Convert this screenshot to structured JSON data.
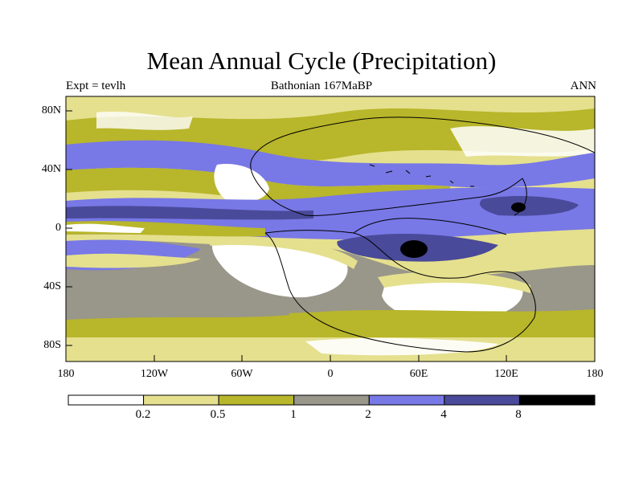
{
  "title": "Mean Annual Cycle (Precipitation)",
  "subtitle_left": "Expt = tevlh",
  "subtitle_center": "Bathonian 167MaBP",
  "subtitle_right": "ANN",
  "lat_ticks": [
    "80N",
    "40N",
    "0",
    "40S",
    "80S"
  ],
  "lat_values": [
    80,
    40,
    0,
    -40,
    -80
  ],
  "lon_ticks": [
    "180",
    "120W",
    "60W",
    "0",
    "60E",
    "120E",
    "180"
  ],
  "colorbar": {
    "labels": [
      "0.2",
      "0.5",
      "1",
      "2",
      "4",
      "8"
    ],
    "colors": [
      "#ffffff",
      "#e5e08e",
      "#b8b62a",
      "#99968a",
      "#7878e6",
      "#4a4a9a",
      "#000000"
    ]
  }
}
